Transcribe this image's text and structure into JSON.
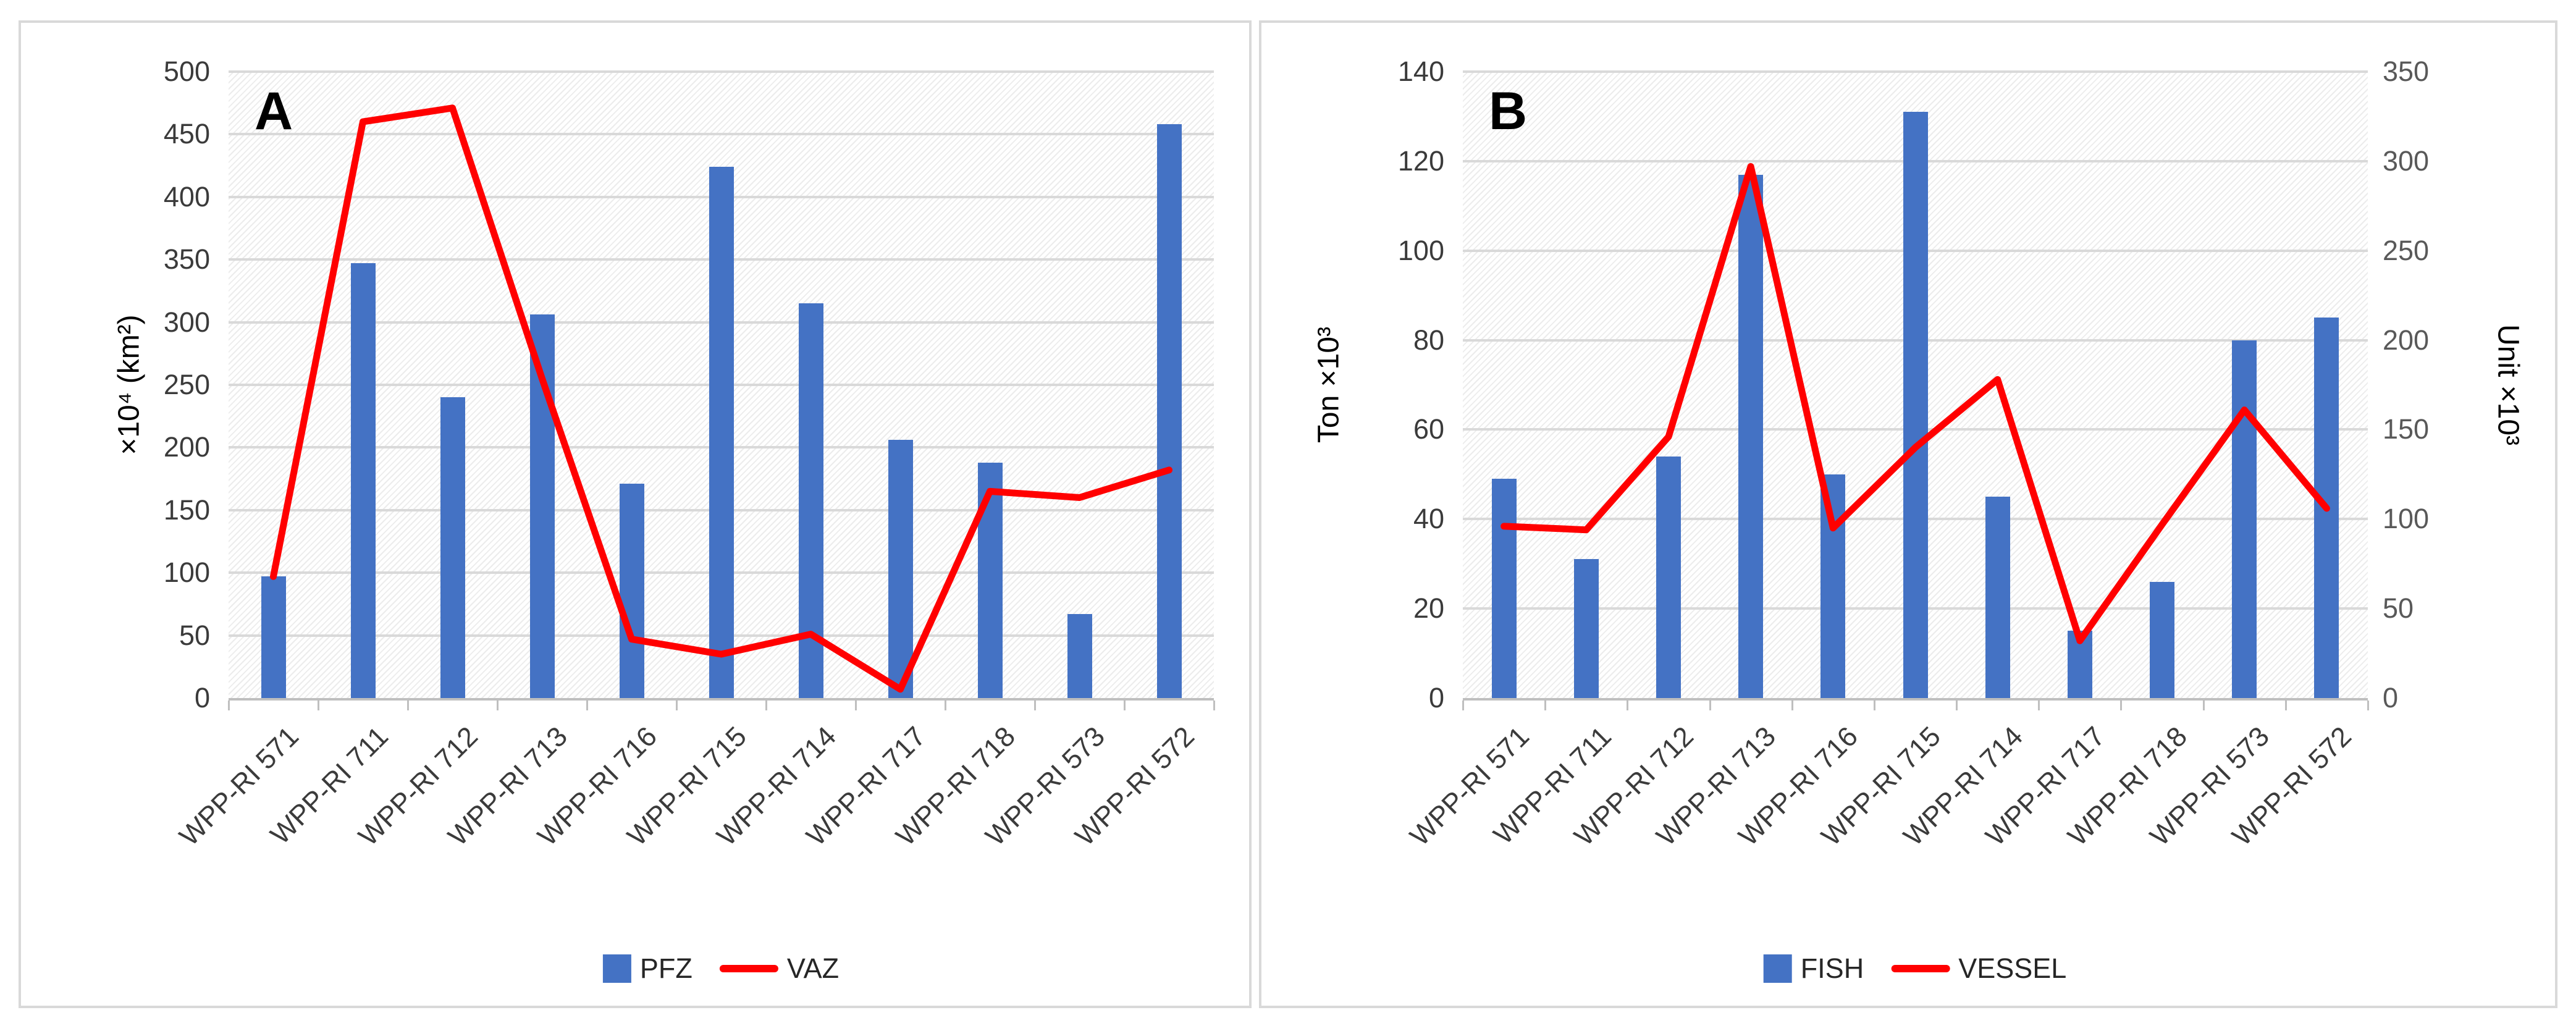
{
  "figure": {
    "background": "#FFFFFF",
    "panel_border_color": "#D9D9D9",
    "panels": [
      "A",
      "B"
    ]
  },
  "colors": {
    "bar_blue": "#4472C4",
    "line_red": "#FF0000",
    "gridline": "#D9D9D9",
    "axis_line": "#BFBFBF",
    "tick_label": "#3B3B3B",
    "right_tick_label": "#595959",
    "hatch": "#ECECEC"
  },
  "chart_data": [
    {
      "type": "bar",
      "subtype": "bar+line combo",
      "panel_label": "A",
      "categories": [
        "WPP-RI 571",
        "WPP-RI 711",
        "WPP-RI 712",
        "WPP-RI 713",
        "WPP-RI 716",
        "WPP-RI 715",
        "WPP-RI 714",
        "WPP-RI 717",
        "WPP-RI 718",
        "WPP-RI 573",
        "WPP-RI 572"
      ],
      "axes": {
        "left": {
          "label": "×10⁴ (km²)",
          "min": 0,
          "max": 500,
          "step": 50,
          "tick_labels": [
            "0",
            "50",
            "100",
            "150",
            "200",
            "250",
            "300",
            "350",
            "400",
            "450",
            "500"
          ]
        }
      },
      "series": [
        {
          "name": "PFZ",
          "type": "bar",
          "color": "#4472C4",
          "axis": "left",
          "values": [
            97,
            347,
            240,
            306,
            171,
            424,
            315,
            206,
            188,
            67,
            458
          ]
        },
        {
          "name": "VAZ",
          "type": "line",
          "color": "#FF0000",
          "axis": "left",
          "values": [
            97,
            460,
            471,
            255,
            47,
            35,
            51,
            7,
            165,
            160,
            182
          ]
        }
      ],
      "grid": true,
      "hatch_fill": true,
      "legend_position": "bottom"
    },
    {
      "type": "bar",
      "subtype": "bar+line combo",
      "panel_label": "B",
      "categories": [
        "WPP-RI 571",
        "WPP-RI 711",
        "WPP-RI 712",
        "WPP-RI 713",
        "WPP-RI 716",
        "WPP-RI 715",
        "WPP-RI 714",
        "WPP-RI 717",
        "WPP-RI 718",
        "WPP-RI 573",
        "WPP-RI 572"
      ],
      "axes": {
        "left": {
          "label": "Ton ×10³",
          "min": 0,
          "max": 140,
          "step": 20,
          "tick_labels": [
            "0",
            "20",
            "40",
            "60",
            "80",
            "100",
            "120",
            "140"
          ]
        },
        "right": {
          "label": "Unit ×10³",
          "min": 0,
          "max": 350,
          "step": 50,
          "tick_labels": [
            "0",
            "50",
            "100",
            "150",
            "200",
            "250",
            "300",
            "350"
          ]
        }
      },
      "series": [
        {
          "name": "FISH",
          "type": "bar",
          "color": "#4472C4",
          "axis": "left",
          "values": [
            49,
            31,
            54,
            117,
            50,
            131,
            45,
            15,
            26,
            80,
            85
          ]
        },
        {
          "name": "VESSEL",
          "type": "line",
          "color": "#FF0000",
          "axis": "right",
          "values": [
            96,
            94,
            146,
            297,
            95,
            140,
            178,
            32,
            97,
            161,
            106
          ]
        }
      ],
      "grid": true,
      "hatch_fill": true,
      "legend_position": "bottom"
    }
  ]
}
